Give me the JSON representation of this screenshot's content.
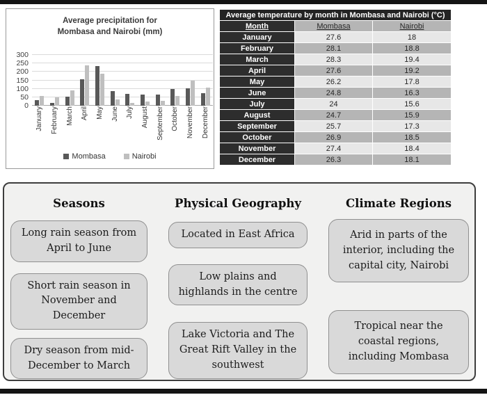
{
  "chart": {
    "title": "Average precipitation for\nMombasa and Nairobi (mm)"
  },
  "chart_data": [
    {
      "type": "bar",
      "title": "Average precipitation for Mombasa and Nairobi (mm)",
      "categories": [
        "January",
        "February",
        "March",
        "April",
        "May",
        "June",
        "July",
        "August",
        "September",
        "October",
        "November",
        "December"
      ],
      "series": [
        {
          "name": "Mombasa",
          "color": "#595959",
          "values": [
            34,
            16,
            55,
            155,
            235,
            88,
            71,
            66,
            65,
            100,
            104,
            75
          ]
        },
        {
          "name": "Nairobi",
          "color": "#bfbfbf",
          "values": [
            57,
            48,
            90,
            240,
            189,
            38,
            17,
            23,
            30,
            58,
            150,
            106
          ]
        }
      ],
      "xlabel": "",
      "ylabel": "",
      "ylim": [
        0,
        300
      ],
      "yticks": [
        0,
        50,
        100,
        150,
        200,
        250,
        300
      ],
      "grid": true,
      "legend_position": "bottom"
    },
    {
      "type": "table",
      "title": "Average temperature by month in Mombasa and Nairobi (°C)",
      "columns": [
        "Month",
        "Mombasa",
        "Nairobi"
      ],
      "rows": [
        [
          "January",
          "27.6",
          "18"
        ],
        [
          "February",
          "28.1",
          "18.8"
        ],
        [
          "March",
          "28.3",
          "19.4"
        ],
        [
          "April",
          "27.6",
          "19.2"
        ],
        [
          "May",
          "26.2",
          "17.8"
        ],
        [
          "June",
          "24.8",
          "16.3"
        ],
        [
          "July",
          "24",
          "15.6"
        ],
        [
          "August",
          "24.7",
          "15.9"
        ],
        [
          "September",
          "25.7",
          "17.3"
        ],
        [
          "October",
          "26.9",
          "18.5"
        ],
        [
          "November",
          "27.4",
          "18.4"
        ],
        [
          "December",
          "26.3",
          "18.1"
        ]
      ]
    }
  ],
  "table": {
    "title": "Average temperature by month in Mombasa and Nairobi (°C)",
    "columns": [
      "Month",
      "Mombasa",
      "Nairobi"
    ],
    "rows": [
      [
        "January",
        "27.6",
        "18"
      ],
      [
        "February",
        "28.1",
        "18.8"
      ],
      [
        "March",
        "28.3",
        "19.4"
      ],
      [
        "April",
        "27.6",
        "19.2"
      ],
      [
        "May",
        "26.2",
        "17.8"
      ],
      [
        "June",
        "24.8",
        "16.3"
      ],
      [
        "July",
        "24",
        "15.6"
      ],
      [
        "August",
        "24.7",
        "15.9"
      ],
      [
        "September",
        "25.7",
        "17.3"
      ],
      [
        "October",
        "26.9",
        "18.5"
      ],
      [
        "November",
        "27.4",
        "18.4"
      ],
      [
        "December",
        "26.3",
        "18.1"
      ]
    ]
  },
  "panel": {
    "columns": [
      {
        "heading": "Seasons",
        "boxes": [
          "Long rain season from\nApril to June",
          "Short rain season in\nNovember and\nDecember",
          "Dry season from mid-\nDecember to March"
        ]
      },
      {
        "heading": "Physical Geography",
        "boxes": [
          "Located in East Africa",
          "Low plains and\nhighlands in the centre",
          "Lake Victoria and The\nGreat Rift Valley in the\nsouthwest"
        ]
      },
      {
        "heading": "Climate Regions",
        "boxes": [
          "Arid in parts of the\ninterior, including the\ncapital city, Nairobi",
          "Tropical near the\ncoastal regions,\nincluding Mombasa"
        ]
      }
    ]
  },
  "colors": {
    "mombasa_bar": "#595959",
    "nairobi_bar": "#bfbfbf",
    "table_header_bg": "#2d2d2d",
    "row_light": "#e7e7e7",
    "row_gray": "#b5b5b5",
    "panel_bg": "#f1f1f0",
    "box_bg": "#d9d9d9"
  }
}
